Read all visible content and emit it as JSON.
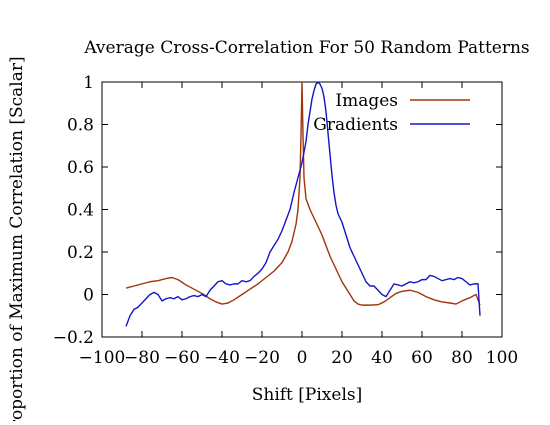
{
  "chart_data": {
    "type": "line",
    "title": "Average Cross-Correlation For 50 Random Patterns",
    "xlabel": "Shift [Pixels]",
    "ylabel": "Proportion of Maximum Correlation [Scalar]",
    "xlim": [
      -100,
      100
    ],
    "ylim": [
      -0.2,
      1
    ],
    "xticks": [
      {
        "value": -100,
        "label": "−100"
      },
      {
        "value": -80,
        "label": "−80"
      },
      {
        "value": -60,
        "label": "−60"
      },
      {
        "value": -40,
        "label": "−40"
      },
      {
        "value": -20,
        "label": "−20"
      },
      {
        "value": 0,
        "label": "0"
      },
      {
        "value": 20,
        "label": "20"
      },
      {
        "value": 40,
        "label": "40"
      },
      {
        "value": 60,
        "label": "60"
      },
      {
        "value": 80,
        "label": "80"
      },
      {
        "value": 100,
        "label": "100"
      }
    ],
    "yticks": [
      {
        "value": -0.2,
        "label": "−0.2"
      },
      {
        "value": 0,
        "label": "0"
      },
      {
        "value": 0.2,
        "label": "0.2"
      },
      {
        "value": 0.4,
        "label": "0.4"
      },
      {
        "value": 0.6,
        "label": "0.6"
      },
      {
        "value": 0.8,
        "label": "0.8"
      },
      {
        "value": 1,
        "label": "1"
      }
    ],
    "grid": false,
    "legend_position": "top-right",
    "series": [
      {
        "name": "Images",
        "color": "#a0350a",
        "points": [
          [
            -88,
            0.03
          ],
          [
            -84,
            0.04
          ],
          [
            -80,
            0.05
          ],
          [
            -76,
            0.06
          ],
          [
            -72,
            0.065
          ],
          [
            -68,
            0.075
          ],
          [
            -65,
            0.08
          ],
          [
            -62,
            0.07
          ],
          [
            -58,
            0.045
          ],
          [
            -54,
            0.025
          ],
          [
            -50,
            0.005
          ],
          [
            -46,
            -0.02
          ],
          [
            -43,
            -0.035
          ],
          [
            -40,
            -0.045
          ],
          [
            -37,
            -0.04
          ],
          [
            -34,
            -0.025
          ],
          [
            -30,
            0.0
          ],
          [
            -26,
            0.025
          ],
          [
            -22,
            0.05
          ],
          [
            -18,
            0.08
          ],
          [
            -14,
            0.11
          ],
          [
            -10,
            0.15
          ],
          [
            -7,
            0.2
          ],
          [
            -5,
            0.25
          ],
          [
            -3,
            0.33
          ],
          [
            -2,
            0.4
          ],
          [
            -1,
            0.55
          ],
          [
            -0.5,
            0.75
          ],
          [
            0,
            1.0
          ],
          [
            0.5,
            0.75
          ],
          [
            1,
            0.55
          ],
          [
            2,
            0.45
          ],
          [
            4,
            0.4
          ],
          [
            6,
            0.36
          ],
          [
            8,
            0.32
          ],
          [
            10,
            0.28
          ],
          [
            12,
            0.23
          ],
          [
            14,
            0.18
          ],
          [
            16,
            0.14
          ],
          [
            18,
            0.1
          ],
          [
            20,
            0.06
          ],
          [
            22,
            0.03
          ],
          [
            24,
            0.0
          ],
          [
            26,
            -0.03
          ],
          [
            28,
            -0.045
          ],
          [
            30,
            -0.05
          ],
          [
            34,
            -0.05
          ],
          [
            38,
            -0.048
          ],
          [
            41,
            -0.035
          ],
          [
            44,
            -0.015
          ],
          [
            47,
            0.005
          ],
          [
            50,
            0.015
          ],
          [
            54,
            0.02
          ],
          [
            58,
            0.01
          ],
          [
            62,
            -0.01
          ],
          [
            66,
            -0.025
          ],
          [
            70,
            -0.035
          ],
          [
            74,
            -0.04
          ],
          [
            77,
            -0.045
          ],
          [
            80,
            -0.03
          ],
          [
            84,
            -0.015
          ],
          [
            87,
            0.0
          ],
          [
            89,
            -0.05
          ]
        ]
      },
      {
        "name": "Gradients",
        "color": "#1414c8",
        "points": [
          [
            -88,
            -0.15
          ],
          [
            -86,
            -0.1
          ],
          [
            -84,
            -0.07
          ],
          [
            -82,
            -0.06
          ],
          [
            -80,
            -0.04
          ],
          [
            -78,
            -0.02
          ],
          [
            -76,
            0.0
          ],
          [
            -74,
            0.01
          ],
          [
            -72,
            0.0
          ],
          [
            -70,
            -0.03
          ],
          [
            -68,
            -0.02
          ],
          [
            -66,
            -0.015
          ],
          [
            -64,
            -0.02
          ],
          [
            -62,
            -0.01
          ],
          [
            -60,
            -0.025
          ],
          [
            -58,
            -0.02
          ],
          [
            -56,
            -0.01
          ],
          [
            -54,
            -0.005
          ],
          [
            -52,
            -0.01
          ],
          [
            -50,
            0.0
          ],
          [
            -48,
            -0.01
          ],
          [
            -46,
            0.02
          ],
          [
            -44,
            0.04
          ],
          [
            -42,
            0.06
          ],
          [
            -40,
            0.065
          ],
          [
            -38,
            0.05
          ],
          [
            -36,
            0.045
          ],
          [
            -34,
            0.05
          ],
          [
            -32,
            0.05
          ],
          [
            -30,
            0.065
          ],
          [
            -28,
            0.06
          ],
          [
            -26,
            0.065
          ],
          [
            -24,
            0.085
          ],
          [
            -22,
            0.1
          ],
          [
            -20,
            0.12
          ],
          [
            -18,
            0.15
          ],
          [
            -16,
            0.2
          ],
          [
            -14,
            0.23
          ],
          [
            -12,
            0.26
          ],
          [
            -10,
            0.3
          ],
          [
            -8,
            0.35
          ],
          [
            -6,
            0.4
          ],
          [
            -4,
            0.48
          ],
          [
            -2,
            0.55
          ],
          [
            0,
            0.62
          ],
          [
            2,
            0.72
          ],
          [
            3,
            0.8
          ],
          [
            4,
            0.86
          ],
          [
            5,
            0.92
          ],
          [
            6,
            0.96
          ],
          [
            7,
            0.99
          ],
          [
            8,
            1.0
          ],
          [
            9,
            0.99
          ],
          [
            10,
            0.97
          ],
          [
            11,
            0.93
          ],
          [
            12,
            0.86
          ],
          [
            13,
            0.76
          ],
          [
            14,
            0.66
          ],
          [
            15,
            0.56
          ],
          [
            16,
            0.48
          ],
          [
            17,
            0.42
          ],
          [
            18,
            0.38
          ],
          [
            19,
            0.36
          ],
          [
            20,
            0.34
          ],
          [
            22,
            0.28
          ],
          [
            24,
            0.22
          ],
          [
            26,
            0.18
          ],
          [
            28,
            0.14
          ],
          [
            30,
            0.1
          ],
          [
            32,
            0.06
          ],
          [
            34,
            0.04
          ],
          [
            36,
            0.04
          ],
          [
            38,
            0.02
          ],
          [
            40,
            0.0
          ],
          [
            42,
            -0.01
          ],
          [
            44,
            0.02
          ],
          [
            46,
            0.05
          ],
          [
            48,
            0.045
          ],
          [
            50,
            0.04
          ],
          [
            52,
            0.05
          ],
          [
            54,
            0.06
          ],
          [
            56,
            0.055
          ],
          [
            58,
            0.06
          ],
          [
            60,
            0.07
          ],
          [
            62,
            0.07
          ],
          [
            64,
            0.09
          ],
          [
            66,
            0.085
          ],
          [
            68,
            0.075
          ],
          [
            70,
            0.065
          ],
          [
            72,
            0.07
          ],
          [
            74,
            0.075
          ],
          [
            76,
            0.07
          ],
          [
            78,
            0.08
          ],
          [
            80,
            0.075
          ],
          [
            82,
            0.06
          ],
          [
            84,
            0.045
          ],
          [
            86,
            0.05
          ],
          [
            88,
            0.05
          ],
          [
            89,
            -0.1
          ]
        ]
      }
    ]
  }
}
